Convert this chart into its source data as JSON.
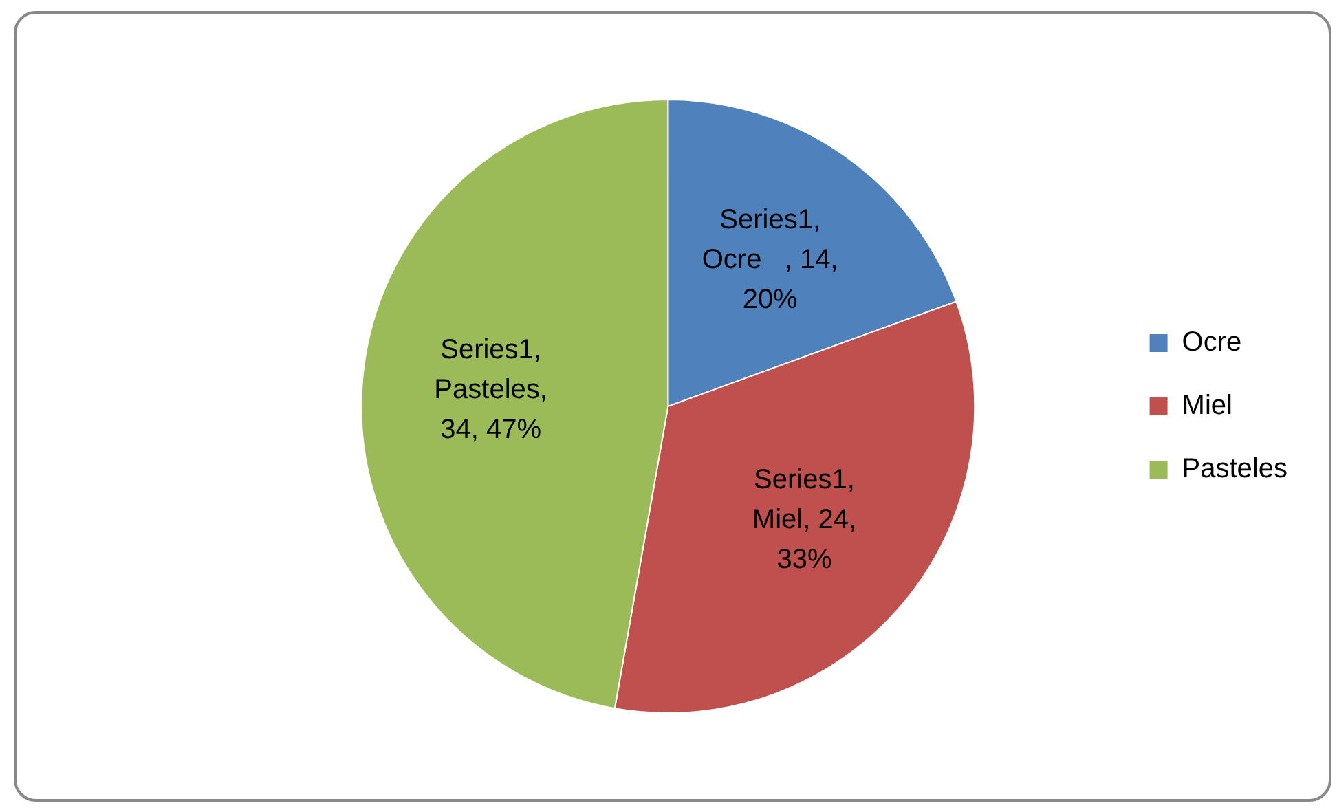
{
  "chart_data": {
    "type": "pie",
    "categories": [
      "Ocre",
      "Miel",
      "Pasteles"
    ],
    "values": [
      14,
      24,
      34
    ],
    "colors": [
      "#4f81bd",
      "#c0504d",
      "#9bbb59"
    ],
    "value_labels": [
      "Series1, Ocre   , 14, 20%",
      "Series1, Miel, 24, 33%",
      "Series1, Pasteles, 34, 47%"
    ],
    "legend": "right"
  }
}
